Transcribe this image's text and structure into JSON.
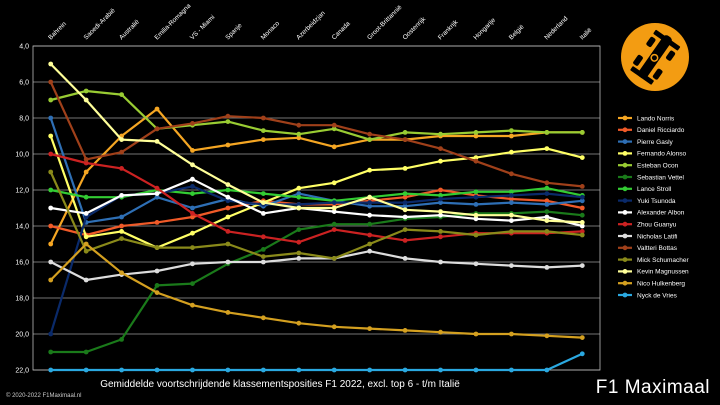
{
  "caption": "Gemiddelde voortschrijdende klassementsposities F1 2022, excl. top 6 - t/m Italië",
  "brand": "F1 Maximaal",
  "copyright": "© 2020-2022 F1Maximaal.nl",
  "chart_data": {
    "type": "line",
    "title": "Gemiddelde voortschrijdende klassementsposities F1 2022, excl. top 6 - t/m Italië",
    "xlabel": "",
    "ylabel": "",
    "ylim": [
      22,
      4
    ],
    "y_ticks": [
      "4,0",
      "6,0",
      "8,0",
      "10,0",
      "12,0",
      "14,0",
      "16,0",
      "18,0",
      "20,0",
      "22,0"
    ],
    "grid": true,
    "legend_position": "right",
    "categories": [
      "Bahrein",
      "Saoedi-Arabië",
      "Australië",
      "Emilia-Romagna",
      "VS - Miami",
      "Spanje",
      "Monaco",
      "Azerbeidzjan",
      "Canada",
      "Groot-Brittannië",
      "Oostenrijk",
      "Frankrijk",
      "Hongarije",
      "België",
      "Nederland",
      "Italië"
    ],
    "series": [
      {
        "name": "Lando Norris",
        "color": "#f5a623",
        "values": [
          15,
          11,
          9,
          7.5,
          9.8,
          9.5,
          9.2,
          9.1,
          9.6,
          9.2,
          9.2,
          9.0,
          9.0,
          9.0,
          8.8,
          8.8
        ]
      },
      {
        "name": "Daniel Ricciardo",
        "color": "#f05a28",
        "values": [
          14,
          14.5,
          14,
          13.8,
          13.5,
          13.0,
          12.6,
          12.8,
          12.8,
          12.6,
          12.4,
          12.0,
          12.3,
          12.5,
          12.6,
          13.0
        ]
      },
      {
        "name": "Pierre Gasly",
        "color": "#2e6fb5",
        "values": [
          8,
          13.8,
          13.5,
          12.4,
          13.0,
          12.5,
          12.9,
          12.2,
          12.6,
          12.9,
          12.9,
          12.7,
          12.8,
          12.7,
          12.8,
          12.6
        ]
      },
      {
        "name": "Fernando Alonso",
        "color": "#ffff66",
        "values": [
          9,
          14.6,
          14.3,
          15.2,
          14.4,
          13.5,
          12.7,
          11.9,
          11.6,
          10.9,
          10.8,
          10.4,
          10.2,
          9.9,
          9.7,
          10.2
        ]
      },
      {
        "name": "Esteban Ocon",
        "color": "#99cc33",
        "values": [
          7,
          6.5,
          6.7,
          8.6,
          8.4,
          8.2,
          8.7,
          8.9,
          8.6,
          9.2,
          8.8,
          8.9,
          8.8,
          8.7,
          8.8,
          8.8
        ]
      },
      {
        "name": "Sebastian Vettel",
        "color": "#1a7a1a",
        "values": [
          21,
          21,
          20.3,
          17.3,
          17.2,
          16.1,
          15.3,
          14.2,
          13.9,
          13.9,
          13.6,
          13.5,
          13.3,
          13.3,
          13.2,
          13.4
        ]
      },
      {
        "name": "Lance Stroll",
        "color": "#33cc33",
        "values": [
          12,
          12.4,
          12.4,
          12.0,
          12.2,
          12.0,
          12.2,
          12.4,
          12.6,
          12.4,
          12.2,
          12.3,
          12.1,
          12.1,
          11.9,
          12.3
        ]
      },
      {
        "name": "Yuki Tsunoda",
        "color": "#0a2a6a",
        "values": [
          20,
          13.5,
          12.3,
          12.2,
          11.8,
          12.6,
          12.8,
          12.8,
          12.7,
          12.7,
          12.7,
          12.5,
          12.4,
          12.3,
          12.2,
          12.4
        ]
      },
      {
        "name": "Alexander Albon",
        "color": "#ffffff",
        "values": [
          13,
          13.3,
          12.3,
          12.2,
          11.4,
          12.4,
          13.3,
          13.0,
          13.2,
          13.4,
          13.5,
          13.4,
          13.6,
          13.7,
          13.5,
          14.0
        ]
      },
      {
        "name": "Zhou Guanyu",
        "color": "#cc2222",
        "values": [
          10,
          10.5,
          10.8,
          11.9,
          13.3,
          14.3,
          14.6,
          14.9,
          14.2,
          14.5,
          14.8,
          14.6,
          14.4,
          14.4,
          14.4,
          14.3
        ]
      },
      {
        "name": "Nicholas Latifi",
        "color": "#dddddd",
        "values": [
          16,
          17,
          16.7,
          16.5,
          16.1,
          16.0,
          16.0,
          15.8,
          15.8,
          15.4,
          15.8,
          16.0,
          16.1,
          16.2,
          16.3,
          16.2
        ]
      },
      {
        "name": "Valtteri Bottas",
        "color": "#a0401a",
        "values": [
          6,
          10.3,
          9.9,
          8.6,
          8.3,
          7.9,
          8.0,
          8.4,
          8.4,
          8.9,
          9.2,
          9.7,
          10.4,
          11.1,
          11.6,
          11.8
        ]
      },
      {
        "name": "Mick Schumacher",
        "color": "#8a8a1a",
        "values": [
          11,
          15.4,
          14.7,
          15.2,
          15.2,
          15.0,
          15.7,
          15.5,
          15.8,
          15.0,
          14.2,
          14.3,
          14.5,
          14.3,
          14.3,
          14.5
        ]
      },
      {
        "name": "Kevin Magnussen",
        "color": "#ffff99",
        "values": [
          5,
          7.0,
          9.2,
          9.3,
          10.6,
          11.7,
          12.7,
          13.0,
          13.0,
          12.4,
          13.1,
          13.2,
          13.4,
          13.4,
          13.7,
          13.8
        ]
      },
      {
        "name": "Nico Hulkenberg",
        "color": "#d4a020",
        "values": [
          17,
          15.0,
          16.6,
          17.7,
          18.4,
          18.8,
          19.1,
          19.4,
          19.6,
          19.7,
          19.8,
          19.9,
          20.0,
          20.0,
          20.1,
          20.2
        ]
      },
      {
        "name": "Nyck de Vries",
        "color": "#2aa8e0",
        "values": [
          22,
          22,
          22,
          22,
          22,
          22,
          22,
          22,
          22,
          22,
          22,
          22,
          22,
          22,
          22,
          21.1
        ]
      }
    ]
  }
}
